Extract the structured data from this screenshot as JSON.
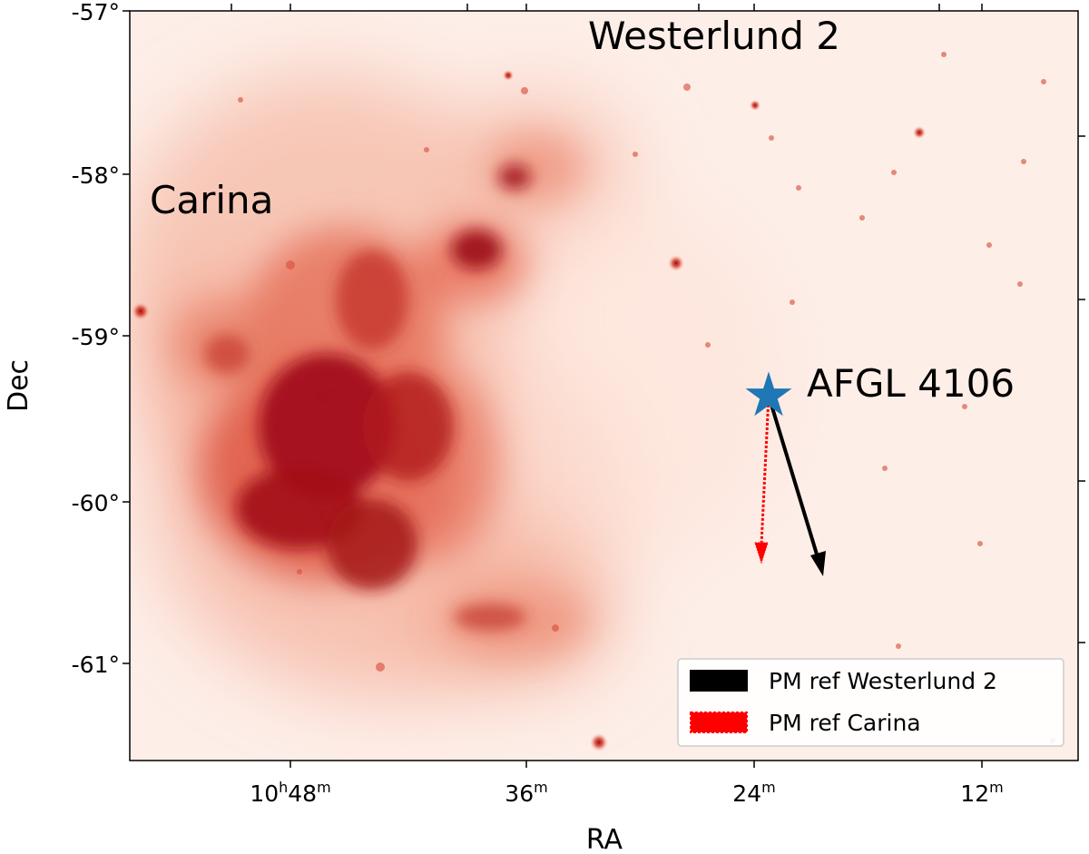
{
  "map": {
    "colormap": "Reds",
    "background_color": "#fdeee8",
    "emission_colors": [
      "#fbd8cb",
      "#f4a68d",
      "#e3583f",
      "#b3141b",
      "#8c0b12"
    ]
  },
  "axes": {
    "xlabel": "RA",
    "ylabel": "Dec",
    "ra_ticks": [
      {
        "hours": "10",
        "hsup": "h",
        "minutes": "48",
        "msup": "m"
      },
      {
        "hours": "",
        "hsup": "",
        "minutes": "36",
        "msup": "m"
      },
      {
        "hours": "",
        "hsup": "",
        "minutes": "24",
        "msup": "m"
      },
      {
        "hours": "",
        "hsup": "",
        "minutes": "12",
        "msup": "m"
      }
    ],
    "dec_ticks": [
      "-57°",
      "-58°",
      "-59°",
      "-60°",
      "-61°"
    ]
  },
  "regions": {
    "westerlund": "Westerlund 2",
    "carina": "Carina",
    "source": "AFGL 4106"
  },
  "marker": {
    "icon": "star-icon",
    "color": "#1f77b4"
  },
  "legend": {
    "placement": "bottom-right",
    "items": [
      {
        "label": "PM ref Westerlund 2",
        "color": "#000000",
        "style": "solid"
      },
      {
        "label": "PM ref Carina",
        "color": "#ff0000",
        "style": "dotted"
      }
    ]
  }
}
